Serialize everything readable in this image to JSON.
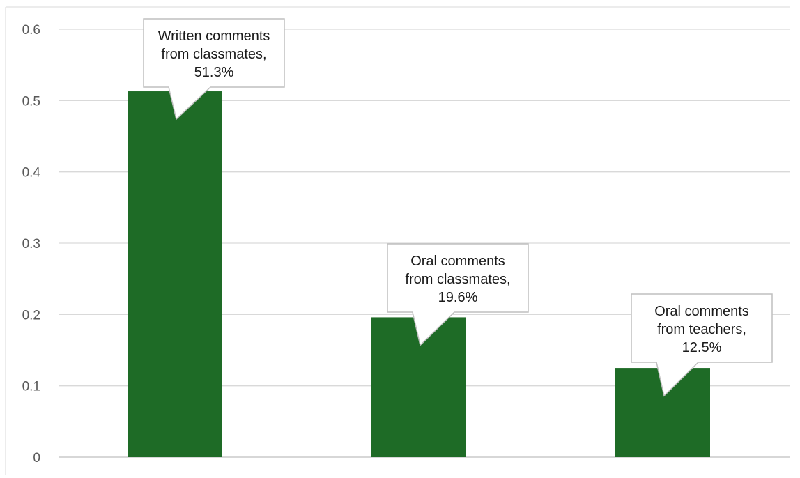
{
  "chart_data": {
    "type": "bar",
    "title": "",
    "xlabel": "",
    "ylabel": "",
    "ylim": [
      0,
      0.6
    ],
    "yticks": [
      0,
      0.1,
      0.2,
      0.3,
      0.4,
      0.5,
      0.6
    ],
    "ytick_labels": [
      "0",
      "0.1",
      "0.2",
      "0.3",
      "0.4",
      "0.5",
      "0.6"
    ],
    "grid": true,
    "legend": "none",
    "bar_color": "#1e6b26",
    "categories": [
      "Written comments from classmates",
      "Oral comments from classmates",
      "Oral comments from teachers"
    ],
    "values": [
      0.513,
      0.196,
      0.125
    ],
    "data_labels": [
      [
        "Written comments",
        "from classmates,",
        "51.3%"
      ],
      [
        "Oral comments",
        "from classmates,",
        "19.6%"
      ],
      [
        "Oral comments",
        "from teachers,",
        "12.5%"
      ]
    ]
  }
}
